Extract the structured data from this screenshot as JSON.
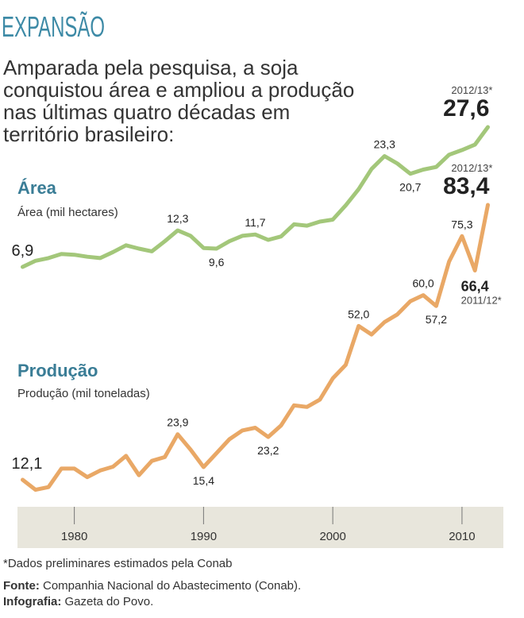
{
  "header": {
    "title": "EXPANSÃO",
    "subtitle_lines": [
      "Amparada pela pesquisa, a soja",
      "conquistou área e ampliou a produção",
      "nas últimas quatro décadas em",
      "território brasileiro:"
    ]
  },
  "chart_data": {
    "type": "line",
    "x": [
      1976,
      1977,
      1978,
      1979,
      1980,
      1981,
      1982,
      1983,
      1984,
      1985,
      1986,
      1987,
      1988,
      1989,
      1990,
      1991,
      1992,
      1993,
      1994,
      1995,
      1996,
      1997,
      1998,
      1999,
      2000,
      2001,
      2002,
      2003,
      2004,
      2005,
      2006,
      2007,
      2008,
      2009,
      2010,
      2011,
      2012
    ],
    "xlim": [
      1975.6,
      2013.2
    ],
    "xticks": [
      1980,
      1990,
      2000,
      2010
    ],
    "series": [
      {
        "name": "Área",
        "label": "Área (mil hectares)",
        "color": "#a3c77a",
        "ylim": [
          0,
          30
        ],
        "values": [
          6.9,
          7.8,
          8.2,
          8.8,
          8.7,
          8.4,
          8.2,
          9.1,
          10.1,
          9.6,
          9.2,
          10.7,
          12.3,
          11.5,
          9.7,
          9.6,
          10.7,
          11.5,
          11.7,
          10.9,
          11.4,
          13.2,
          13.0,
          13.6,
          13.9,
          16.0,
          18.4,
          21.4,
          23.3,
          22.2,
          20.7,
          21.3,
          21.7,
          23.5,
          24.2,
          25.0,
          27.6
        ],
        "value_labels": [
          "6,9",
          null,
          null,
          null,
          null,
          null,
          null,
          null,
          null,
          null,
          null,
          null,
          "12,3",
          null,
          null,
          "9,6",
          null,
          null,
          "11,7",
          null,
          null,
          null,
          null,
          null,
          null,
          null,
          null,
          null,
          "23,3",
          null,
          "20,7",
          null,
          null,
          null,
          null,
          null,
          "27,6"
        ],
        "value_notes": [
          null,
          null,
          null,
          null,
          null,
          null,
          null,
          null,
          null,
          null,
          null,
          null,
          null,
          null,
          null,
          null,
          null,
          null,
          null,
          null,
          null,
          null,
          null,
          null,
          null,
          null,
          null,
          null,
          null,
          null,
          null,
          null,
          null,
          null,
          null,
          null,
          "2012/13*"
        ]
      },
      {
        "name": "Produção",
        "label": "Produção (mil toneladas)",
        "color": "#e9a866",
        "ylim": [
          0,
          90
        ],
        "values": [
          12.1,
          9.5,
          10.2,
          15.0,
          15.0,
          12.8,
          14.5,
          15.5,
          18.3,
          13.3,
          17.0,
          18.0,
          23.9,
          19.9,
          15.4,
          19.0,
          22.6,
          24.9,
          25.6,
          23.2,
          26.2,
          31.4,
          31.0,
          32.9,
          38.4,
          41.9,
          52.0,
          49.8,
          53.0,
          55.0,
          58.4,
          60.0,
          57.2,
          68.7,
          75.3,
          66.4,
          83.4
        ],
        "value_labels": [
          "12,1",
          null,
          null,
          null,
          null,
          null,
          null,
          null,
          null,
          null,
          null,
          null,
          "23,9",
          null,
          "15,4",
          null,
          null,
          null,
          null,
          "23,2",
          null,
          null,
          null,
          null,
          null,
          null,
          "52,0",
          null,
          null,
          null,
          null,
          "60,0",
          "57,2",
          null,
          "75,3",
          "66,4",
          "83,4"
        ],
        "value_notes": [
          null,
          null,
          null,
          null,
          null,
          null,
          null,
          null,
          null,
          null,
          null,
          null,
          null,
          null,
          null,
          null,
          null,
          null,
          null,
          null,
          null,
          null,
          null,
          null,
          null,
          null,
          null,
          null,
          null,
          null,
          null,
          null,
          null,
          null,
          null,
          "2011/12*",
          "2012/13*"
        ]
      }
    ]
  },
  "footer": {
    "note": "*Dados preliminares estimados pela Conab",
    "source_label": "Fonte:",
    "source": "Companhia Nacional do Abastecimento (Conab).",
    "credit_label": "Infografia:",
    "credit": "Gazeta do Povo."
  }
}
